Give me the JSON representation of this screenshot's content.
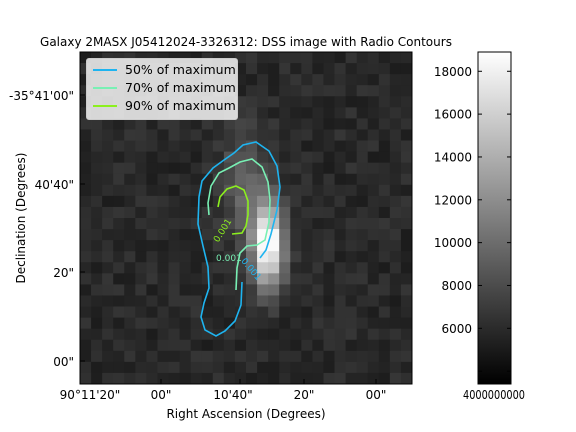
{
  "chart_data": {
    "type": "heatmap",
    "title": "Galaxy 2MASX J05412024-3326312: DSS image with Radio Contours",
    "xlabel": "Right Ascension (Degrees)",
    "ylabel": "Declination (Degrees)",
    "x_ticks": [
      "90°11'20\"",
      "00\"",
      "10'40\"",
      "20\"",
      "00\""
    ],
    "y_ticks": [
      "-35°41'00\"",
      "40'40\"",
      "20\"",
      "00\""
    ],
    "colorbar": {
      "ticks": [
        4000,
        6000,
        8000,
        10000,
        12000,
        14000,
        16000,
        18000
      ],
      "tick_labels": [
        "4000",
        "6000",
        "8000",
        "10000",
        "12000",
        "14000",
        "16000",
        "18000"
      ],
      "range": [
        3400,
        18900
      ],
      "overlapping_label": "4000000000"
    },
    "legend": {
      "position": "upper-left",
      "items": [
        {
          "label": "50% of maximum",
          "color": "#1eb4f0"
        },
        {
          "label": "70% of maximum",
          "color": "#78f0b4"
        },
        {
          "label": "90% of maximum",
          "color": "#8cf01e"
        }
      ]
    },
    "contour_labels": [
      {
        "text": "0.001",
        "color": "#8cf01e"
      },
      {
        "text": "0.001",
        "color": "#78f0b4"
      },
      {
        "text": "0.001",
        "color": "#1eb4f0"
      }
    ]
  }
}
